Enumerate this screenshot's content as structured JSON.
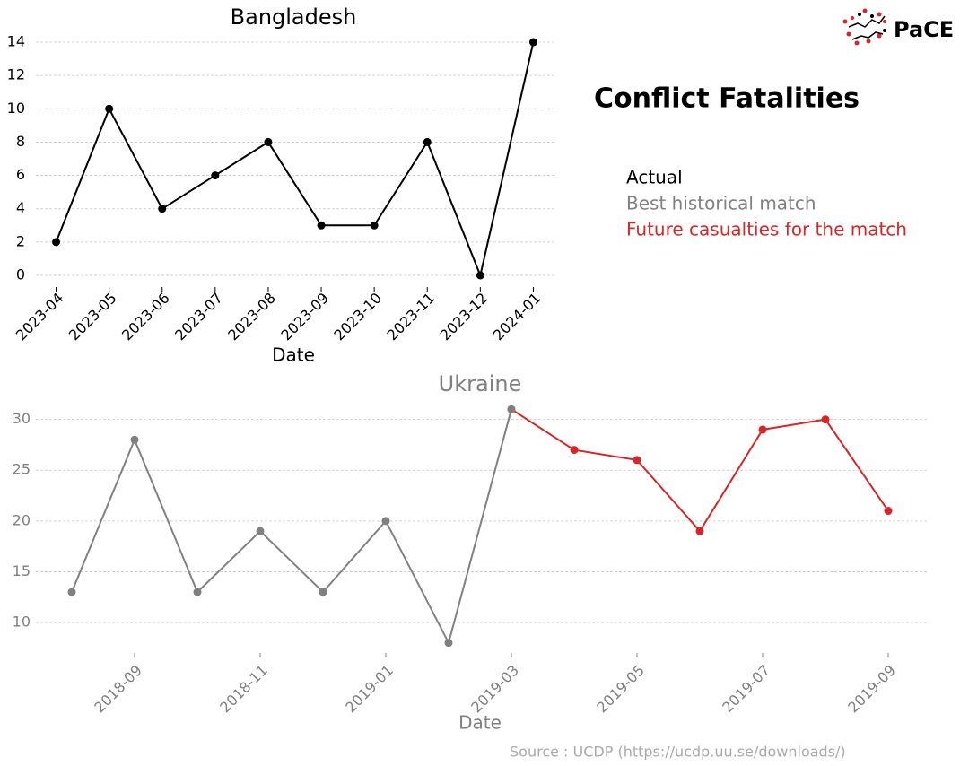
{
  "title": "Conflict Fatalities",
  "source": "Source : UCDP (https://ucdp.uu.se/downloads/)",
  "logo": "PaCE",
  "chart_data": [
    {
      "type": "line",
      "title": "Bangladesh",
      "xlabel": "Date",
      "categories": [
        "2023-04",
        "2023-05",
        "2023-06",
        "2023-07",
        "2023-08",
        "2023-09",
        "2023-10",
        "2023-11",
        "2023-12",
        "2024-01"
      ],
      "series": [
        {
          "name": "Actual",
          "color": "#000000",
          "values": [
            2,
            10,
            4,
            6,
            8,
            3,
            3,
            8,
            0,
            14
          ]
        }
      ],
      "ylim": [
        -0.7,
        14.7
      ],
      "yticks": [
        0,
        2,
        4,
        6,
        8,
        10,
        12,
        14
      ],
      "grid": true
    },
    {
      "type": "line",
      "title": "Ukraine",
      "xlabel": "Date",
      "x": [
        "2018-08",
        "2018-09",
        "2018-10",
        "2018-11",
        "2018-12",
        "2019-01",
        "2019-02",
        "2019-03",
        "2019-04",
        "2019-05",
        "2019-06",
        "2019-07",
        "2019-08",
        "2019-09"
      ],
      "series": [
        {
          "name": "Best historical match",
          "color": "#808080",
          "values": [
            13,
            28,
            13,
            19,
            13,
            20,
            8,
            31,
            null,
            null,
            null,
            null,
            null,
            null
          ]
        },
        {
          "name": "Future casualties for the match",
          "color": "#d62728",
          "values": [
            null,
            null,
            null,
            null,
            null,
            null,
            null,
            31,
            27,
            26,
            19,
            29,
            30,
            21
          ]
        }
      ],
      "xlim": [
        "2018-07",
        "2019-10"
      ],
      "xticks": [
        "2018-09",
        "2018-11",
        "2019-01",
        "2019-03",
        "2019-05",
        "2019-07",
        "2019-09"
      ],
      "ylim": [
        7,
        32
      ],
      "yticks": [
        10,
        15,
        20,
        25,
        30
      ],
      "grid": true
    }
  ]
}
